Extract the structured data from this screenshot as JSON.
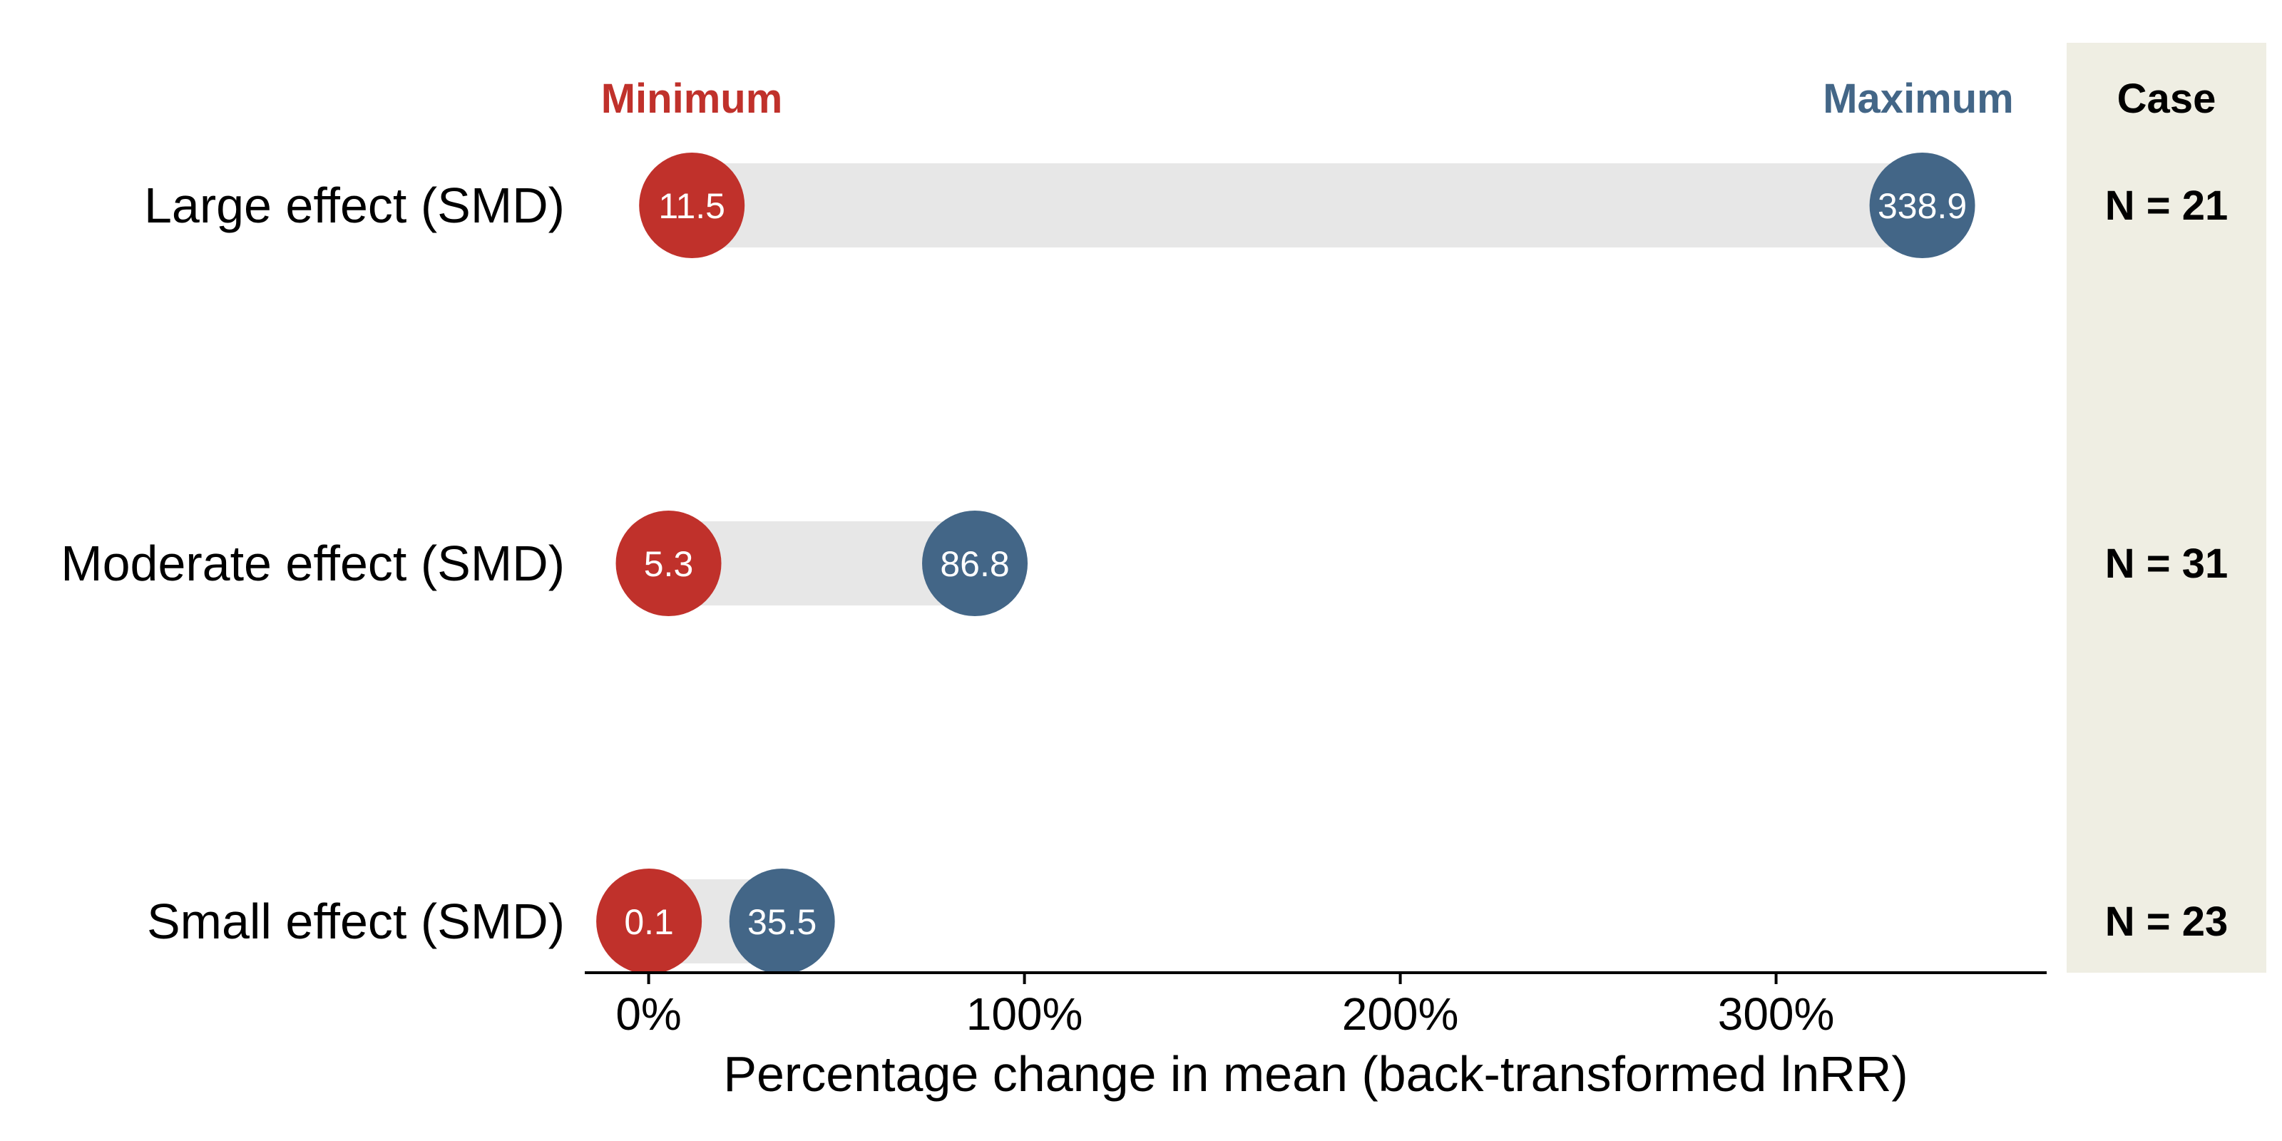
{
  "chart_data": {
    "type": "dumbbell",
    "categories": [
      "Large effect (SMD)",
      "Moderate effect (SMD)",
      "Small effect (SMD)"
    ],
    "series": [
      {
        "name": "Minimum",
        "values": [
          11.5,
          5.3,
          0.1
        ]
      },
      {
        "name": "Maximum",
        "values": [
          338.9,
          86.8,
          35.5
        ]
      }
    ],
    "value_labels": {
      "min": [
        "11.5",
        "5.3",
        "0.1"
      ],
      "max": [
        "338.9",
        "86.8",
        "35.5"
      ]
    },
    "xlabel": "Percentage change in mean (back-transformed lnRR)",
    "xlim": [
      -17,
      372
    ],
    "xticks": [
      0,
      100,
      200,
      300
    ],
    "xtick_labels": [
      "0%",
      "100%",
      "200%",
      "300%"
    ],
    "legend": {
      "min_label": "Minimum",
      "max_label": "Maximum",
      "placement": "top"
    },
    "case_panel": {
      "header": "Case",
      "values": [
        "N = 21",
        "N = 31",
        "N = 23"
      ]
    },
    "colors": {
      "min": "#c0312b",
      "max": "#436687",
      "bar": "#e7e7e7",
      "case_bg": "#efeee3",
      "axis": "#000000"
    }
  }
}
